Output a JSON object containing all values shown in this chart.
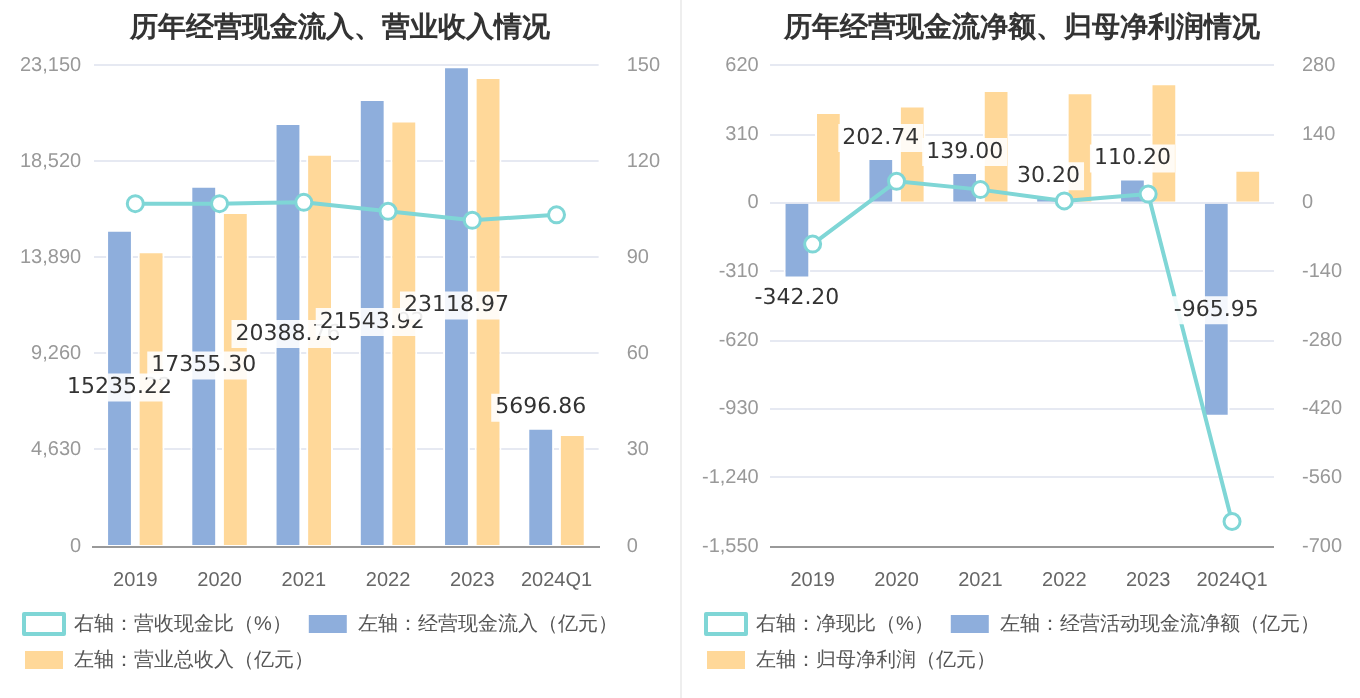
{
  "chart_data": [
    {
      "type": "bar",
      "title": "历年经营现金流入、营业收入情况",
      "categories": [
        "2019",
        "2020",
        "2021",
        "2022",
        "2023",
        "2024Q1"
      ],
      "series": [
        {
          "name": "左轴：经营现金流入（亿元）",
          "color": "#8eaedc",
          "values": [
            15235.22,
            17355.3,
            20388.76,
            21543.92,
            23118.97,
            5696.86
          ],
          "value_labels": [
            "15235.22",
            "17355.30",
            "20388.76",
            "21543.92",
            "23118.97",
            "5696.86"
          ]
        },
        {
          "name": "左轴：营业总收入（亿元）",
          "color": "#ffd899",
          "values": [
            14200,
            16100,
            18900,
            20500,
            22600,
            5400
          ]
        },
        {
          "name": "右轴：营收现金比（%）",
          "type": "line",
          "axis": "y2",
          "color": "#7fd6d6",
          "values": [
            106.9,
            106.9,
            107.3,
            104.5,
            101.7,
            103.4
          ]
        }
      ],
      "ylim": [
        0,
        23150
      ],
      "yticks": [
        0,
        {
          "value": 4630,
          "label": "4,630"
        },
        {
          "value": 9260,
          "label": "9,260"
        },
        {
          "value": 13890,
          "label": "13,890"
        },
        {
          "value": 18520,
          "label": "18,520"
        },
        {
          "value": 23150,
          "label": "23,150"
        }
      ],
      "y2lim": [
        0,
        150
      ],
      "y2ticks": [
        0,
        30,
        60,
        90,
        120,
        150
      ],
      "grid": "y",
      "legend": "bottom",
      "marker": "circle"
    },
    {
      "type": "bar",
      "title": "历年经营现金流净额、归母净利润情况",
      "categories": [
        "2019",
        "2020",
        "2021",
        "2022",
        "2023",
        "2024Q1"
      ],
      "series": [
        {
          "name": "左轴：经营活动现金流净额（亿元）",
          "color": "#8eaedc",
          "values": [
            -342.2,
            202.74,
            139.0,
            30.2,
            110.2,
            -965.95
          ],
          "value_labels": [
            "-342.20",
            "202.74",
            "139.00",
            "30.20",
            "110.20",
            "-965.95"
          ]
        },
        {
          "name": "左轴：归母净利润（亿元）",
          "color": "#ffd899",
          "values": [
            410,
            440,
            510,
            500,
            540,
            150
          ]
        },
        {
          "name": "右轴：净现比（%）",
          "type": "line",
          "axis": "y2",
          "color": "#7fd6d6",
          "values": [
            -84,
            44,
            27,
            4,
            18,
            -650
          ]
        }
      ],
      "ylim": [
        -1550,
        620
      ],
      "yticks": [
        {
          "value": -1550,
          "label": "-1,550"
        },
        {
          "value": -1240,
          "label": "-1,240"
        },
        -930,
        -620,
        -310,
        0,
        310,
        620
      ],
      "y2lim": [
        -700,
        280
      ],
      "y2ticks": [
        -700,
        -560,
        -420,
        -280,
        -140,
        0,
        140,
        280
      ],
      "grid": "y",
      "legend": "bottom",
      "marker": "circle"
    }
  ]
}
